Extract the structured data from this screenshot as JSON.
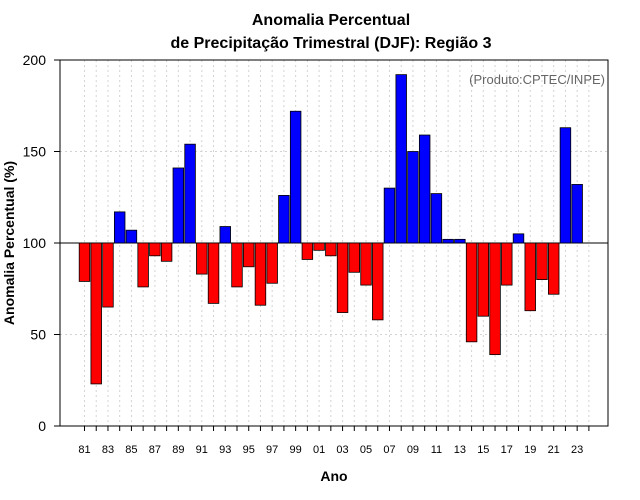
{
  "chart_data": {
    "type": "bar",
    "title": "Anomalia Percentual",
    "subtitle": "de Precipitação Trimestral (DJF): Região 3",
    "xlabel": "Ano",
    "ylabel": "Anomalia Percentual (%)",
    "annotation": "(Produto:CPTEC/INPE)",
    "ylim": [
      0,
      200
    ],
    "yticks": [
      0,
      50,
      100,
      150,
      200
    ],
    "baseline": 100,
    "grid": true,
    "colors": {
      "above": "#0000ff",
      "below": "#ff0000",
      "edge": "#000000",
      "grid": "#d3d3d3"
    },
    "categories": [
      "81",
      "82",
      "83",
      "84",
      "85",
      "86",
      "87",
      "88",
      "89",
      "90",
      "91",
      "92",
      "93",
      "94",
      "95",
      "96",
      "97",
      "98",
      "99",
      "00",
      "01",
      "02",
      "03",
      "04",
      "05",
      "06",
      "07",
      "08",
      "09",
      "10",
      "11",
      "12",
      "13",
      "14",
      "15",
      "16",
      "17",
      "18",
      "19",
      "20",
      "21",
      "22",
      "23",
      "24"
    ],
    "xtick_labels": [
      "81",
      "83",
      "85",
      "87",
      "89",
      "91",
      "93",
      "95",
      "97",
      "99",
      "01",
      "03",
      "05",
      "07",
      "09",
      "11",
      "13",
      "15",
      "17",
      "19",
      "21",
      "23"
    ],
    "values": [
      79,
      23,
      65,
      117,
      107,
      76,
      93,
      90,
      141,
      154,
      83,
      67,
      109,
      76,
      87,
      66,
      78,
      126,
      172,
      91,
      96,
      93,
      62,
      84,
      77,
      58,
      130,
      192,
      150,
      159,
      127,
      102,
      102,
      46,
      60,
      39,
      77,
      105,
      63,
      80,
      72,
      163,
      132,
      100
    ]
  }
}
